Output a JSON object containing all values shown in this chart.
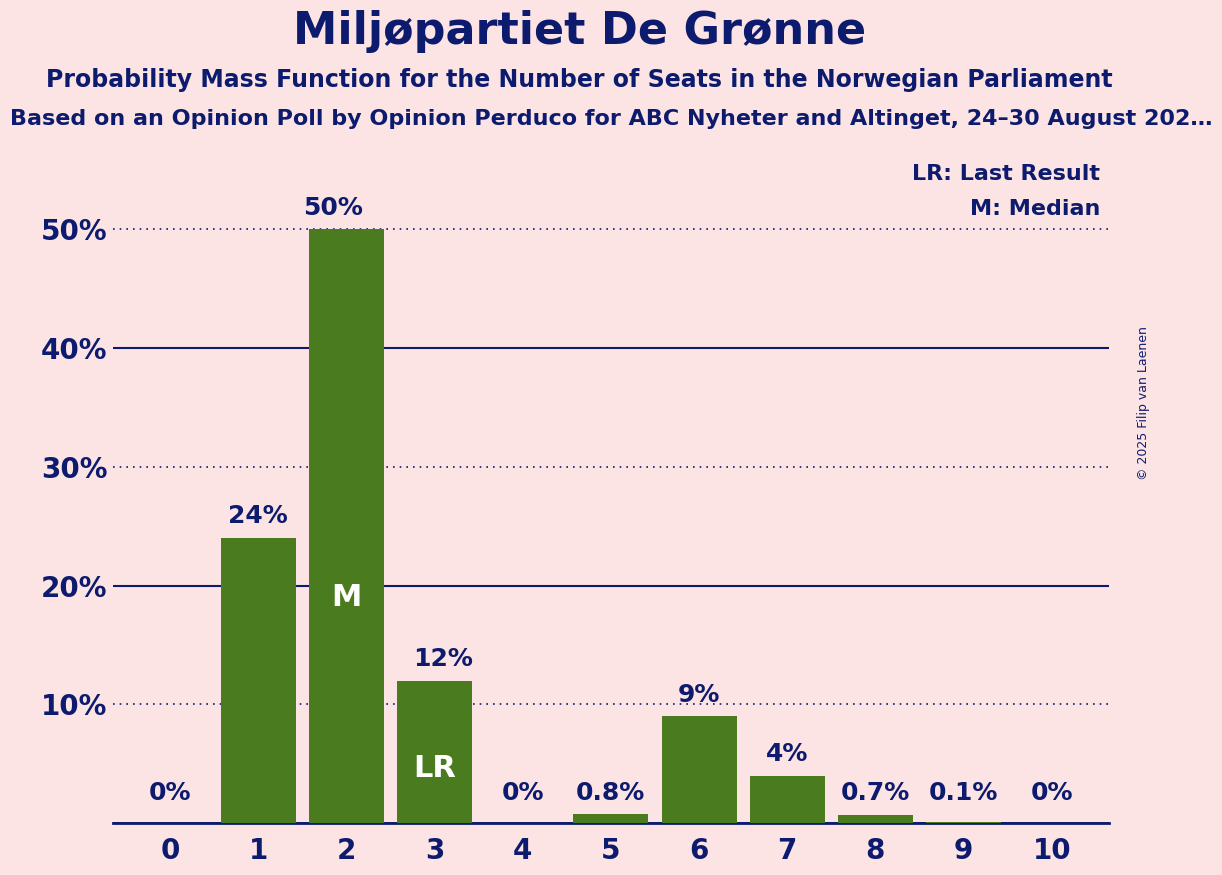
{
  "title": "Miljøpartiet De Grønne",
  "subtitle1": "Probability Mass Function for the Number of Seats in the Norwegian Parliament",
  "subtitle2": "Based on an Opinion Poll by Opinion Perduco for ABC Nyheter and Altinget, 24–30 August 202…",
  "copyright": "© 2025 Filip van Laenen",
  "categories": [
    0,
    1,
    2,
    3,
    4,
    5,
    6,
    7,
    8,
    9,
    10
  ],
  "values": [
    0.0,
    24.0,
    50.0,
    12.0,
    0.0,
    0.8,
    9.0,
    4.0,
    0.7,
    0.1,
    0.0
  ],
  "bar_color": "#4a7c1f",
  "background_color": "#fce4e4",
  "text_color": "#0d1b6e",
  "bar_text_color_inside": "#ffffff",
  "label_texts": [
    "0%",
    "24%",
    "50%",
    "12%",
    "0%",
    "0.8%",
    "9%",
    "4%",
    "0.7%",
    "0.1%",
    "0%"
  ],
  "median_bar": 2,
  "lr_bar": 3,
  "median_label": "M",
  "lr_label": "LR",
  "legend_lr": "LR: Last Result",
  "legend_m": "M: Median",
  "ylim": [
    0,
    56
  ],
  "yticks": [
    0,
    10,
    20,
    30,
    40,
    50
  ],
  "ytick_labels": [
    "",
    "10%",
    "20%",
    "30%",
    "40%",
    "50%"
  ],
  "solid_gridlines": [
    20,
    40
  ],
  "dotted_gridlines": [
    10,
    30,
    50
  ],
  "title_fontsize": 32,
  "subtitle1_fontsize": 17,
  "subtitle2_fontsize": 16,
  "axis_label_fontsize": 20,
  "bar_label_fontsize": 18,
  "bar_label_inside_fontsize": 22,
  "legend_fontsize": 16,
  "copyright_fontsize": 9
}
